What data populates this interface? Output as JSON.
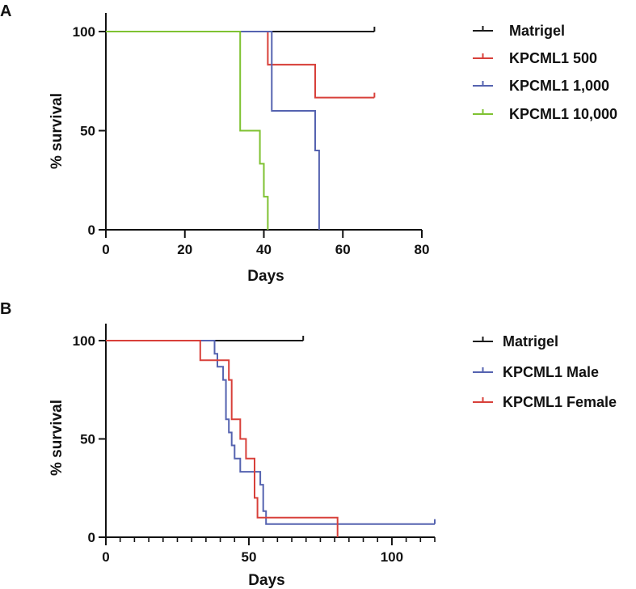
{
  "figure": {
    "panels": [
      "A",
      "B"
    ]
  },
  "chart_data": [
    {
      "type": "line",
      "subtype": "kaplan-meier",
      "panel_label": "A",
      "xlabel": "Days",
      "ylabel": "% survival",
      "xlim": [
        0,
        80
      ],
      "ylim": [
        0,
        100
      ],
      "x_ticks": [
        0,
        20,
        40,
        60,
        80
      ],
      "y_ticks": [
        0,
        50,
        100
      ],
      "minor_x_ticks": false,
      "legend_position": "right",
      "series": [
        {
          "name": "Matrigel",
          "color": "#1a1a1a",
          "steps": [
            [
              0,
              100
            ],
            [
              68,
              100
            ]
          ],
          "censored": [
            [
              68,
              100
            ]
          ]
        },
        {
          "name": "KPCML1 500",
          "color": "#d8403a",
          "steps": [
            [
              0,
              100
            ],
            [
              41,
              100
            ],
            [
              41,
              83.3
            ],
            [
              53,
              83.3
            ],
            [
              53,
              66.7
            ],
            [
              68,
              66.7
            ]
          ],
          "censored": [
            [
              68,
              66.7
            ]
          ]
        },
        {
          "name": "KPCML1 1,000",
          "color": "#5563b0",
          "steps": [
            [
              0,
              100
            ],
            [
              42,
              100
            ],
            [
              42,
              60
            ],
            [
              53,
              60
            ],
            [
              53,
              40
            ],
            [
              54,
              40
            ],
            [
              54,
              0
            ]
          ],
          "censored": []
        },
        {
          "name": "KPCML1 10,000",
          "color": "#7fc232",
          "steps": [
            [
              0,
              100
            ],
            [
              34,
              100
            ],
            [
              34,
              50
            ],
            [
              39,
              50
            ],
            [
              39,
              33.3
            ],
            [
              40,
              33.3
            ],
            [
              40,
              16.7
            ],
            [
              41,
              16.7
            ],
            [
              41,
              0
            ]
          ],
          "censored": []
        }
      ]
    },
    {
      "type": "line",
      "subtype": "kaplan-meier",
      "panel_label": "B",
      "xlabel": "Days",
      "ylabel": "% survival",
      "xlim": [
        0,
        115
      ],
      "ylim": [
        0,
        100
      ],
      "x_ticks": [
        0,
        50,
        100
      ],
      "y_ticks": [
        0,
        50,
        100
      ],
      "minor_x_ticks": true,
      "minor_x_step": 5,
      "legend_position": "right",
      "series": [
        {
          "name": "Matrigel",
          "color": "#1a1a1a",
          "steps": [
            [
              0,
              100
            ],
            [
              69,
              100
            ]
          ],
          "censored": [
            [
              69,
              100
            ]
          ]
        },
        {
          "name": "KPCML1 Male",
          "color": "#5563b0",
          "steps": [
            [
              0,
              100
            ],
            [
              38,
              100
            ],
            [
              38,
              93.3
            ],
            [
              39,
              93.3
            ],
            [
              39,
              86.7
            ],
            [
              41,
              86.7
            ],
            [
              41,
              80
            ],
            [
              42,
              80
            ],
            [
              42,
              60
            ],
            [
              43,
              60
            ],
            [
              43,
              53.3
            ],
            [
              44,
              53.3
            ],
            [
              44,
              46.7
            ],
            [
              45,
              46.7
            ],
            [
              45,
              40
            ],
            [
              47,
              40
            ],
            [
              47,
              33.3
            ],
            [
              54,
              33.3
            ],
            [
              54,
              26.7
            ],
            [
              55,
              26.7
            ],
            [
              55,
              13.3
            ],
            [
              56,
              13.3
            ],
            [
              56,
              6.7
            ],
            [
              115,
              6.7
            ]
          ],
          "censored": [
            [
              115,
              6.7
            ]
          ]
        },
        {
          "name": "KPCML1 Female",
          "color": "#d8403a",
          "steps": [
            [
              0,
              100
            ],
            [
              33,
              100
            ],
            [
              33,
              90
            ],
            [
              43,
              90
            ],
            [
              43,
              80
            ],
            [
              44,
              80
            ],
            [
              44,
              60
            ],
            [
              47,
              60
            ],
            [
              47,
              50
            ],
            [
              49,
              50
            ],
            [
              49,
              40
            ],
            [
              52,
              40
            ],
            [
              52,
              20
            ],
            [
              53,
              20
            ],
            [
              53,
              10
            ],
            [
              81,
              10
            ],
            [
              81,
              0
            ]
          ],
          "censored": []
        }
      ]
    }
  ]
}
